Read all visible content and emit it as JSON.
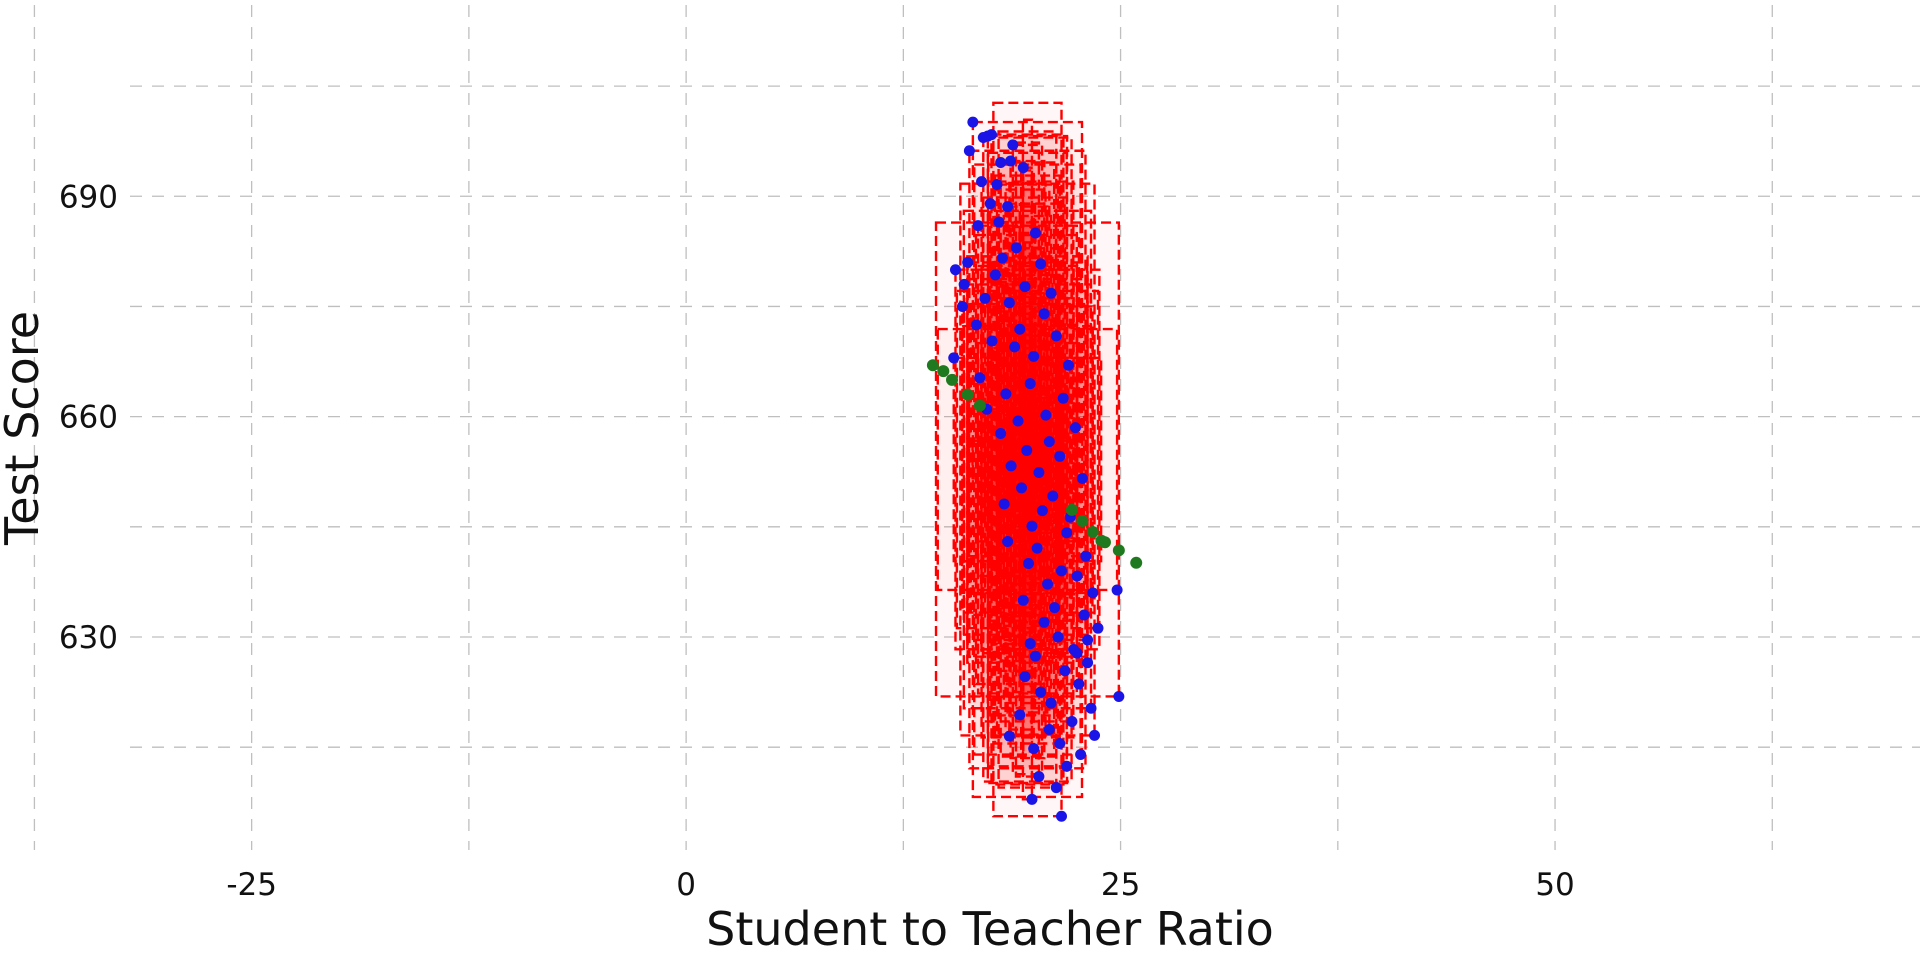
{
  "chart_data": {
    "type": "scatter",
    "title": "",
    "xlabel": "Student to Teacher Ratio",
    "ylabel": "Test Score",
    "xlim": [
      -32,
      71
    ],
    "ylim": [
      601,
      714
    ],
    "x_ticks": [
      -25,
      0,
      25,
      50
    ],
    "y_ticks": [
      630,
      660,
      690
    ],
    "grid": true,
    "legend": "none",
    "colors": {
      "points": "#1a14e6",
      "residual_points": "#1f7a1f",
      "rectangles_stroke": "#ff0000",
      "rectangles_fill": "#ff0000",
      "grid": "#bfbfbf"
    },
    "x_mean": 19.64,
    "y_mean": 654.16,
    "series": [
      {
        "values": [
          [
            17.89,
            691.6
          ],
          [
            17.36,
            698.2
          ],
          [
            18.67,
            694.8
          ],
          [
            17.57,
            698.4
          ],
          [
            18.1,
            694.6
          ],
          [
            16.5,
            700.1
          ],
          [
            17.1,
            698.0
          ],
          [
            18.8,
            697.0
          ],
          [
            16.3,
            696.2
          ],
          [
            19.4,
            693.9
          ],
          [
            17.0,
            692.0
          ],
          [
            18.5,
            688.6
          ],
          [
            17.5,
            689.0
          ],
          [
            18.0,
            686.5
          ],
          [
            16.8,
            686.0
          ],
          [
            20.1,
            685.0
          ],
          [
            19.0,
            683.0
          ],
          [
            16.2,
            681.0
          ],
          [
            18.2,
            681.6
          ],
          [
            15.5,
            680.0
          ],
          [
            17.8,
            679.3
          ],
          [
            20.4,
            680.8
          ],
          [
            16.0,
            678.0
          ],
          [
            19.5,
            677.7
          ],
          [
            17.2,
            676.1
          ],
          [
            21.0,
            676.8
          ],
          [
            18.6,
            675.5
          ],
          [
            15.9,
            675.0
          ],
          [
            20.6,
            674.0
          ],
          [
            16.7,
            672.5
          ],
          [
            19.2,
            671.9
          ],
          [
            21.3,
            671.0
          ],
          [
            17.6,
            670.3
          ],
          [
            18.9,
            669.5
          ],
          [
            15.4,
            668.0
          ],
          [
            20.0,
            668.2
          ],
          [
            22.0,
            667.0
          ],
          [
            16.9,
            665.3
          ],
          [
            19.8,
            664.5
          ],
          [
            18.4,
            663.1
          ],
          [
            21.7,
            662.5
          ],
          [
            17.3,
            661.0
          ],
          [
            20.7,
            660.2
          ],
          [
            19.1,
            659.4
          ],
          [
            22.4,
            658.5
          ],
          [
            18.1,
            657.7
          ],
          [
            20.9,
            656.6
          ],
          [
            19.6,
            655.4
          ],
          [
            21.5,
            654.6
          ],
          [
            18.7,
            653.3
          ],
          [
            20.3,
            652.4
          ],
          [
            22.8,
            651.6
          ],
          [
            19.3,
            650.3
          ],
          [
            21.1,
            649.2
          ],
          [
            18.3,
            648.1
          ],
          [
            20.5,
            647.2
          ],
          [
            22.1,
            646.3
          ],
          [
            19.9,
            645.1
          ],
          [
            21.9,
            644.2
          ],
          [
            18.5,
            643.0
          ],
          [
            20.2,
            642.1
          ],
          [
            23.0,
            641.0
          ],
          [
            19.7,
            640.0
          ],
          [
            21.6,
            639.0
          ],
          [
            22.5,
            638.3
          ],
          [
            20.8,
            637.2
          ],
          [
            23.4,
            636.0
          ],
          [
            19.4,
            635.0
          ],
          [
            21.2,
            634.0
          ],
          [
            22.9,
            633.0
          ],
          [
            20.6,
            632.0
          ],
          [
            23.7,
            631.2
          ],
          [
            21.4,
            630.0
          ],
          [
            19.8,
            629.1
          ],
          [
            22.3,
            628.3
          ],
          [
            20.1,
            627.4
          ],
          [
            23.1,
            626.5
          ],
          [
            21.8,
            625.4
          ],
          [
            19.5,
            624.6
          ],
          [
            22.6,
            623.6
          ],
          [
            20.4,
            622.5
          ],
          [
            24.9,
            621.9
          ],
          [
            21.0,
            621.0
          ],
          [
            23.3,
            620.3
          ],
          [
            19.2,
            619.4
          ],
          [
            22.2,
            618.5
          ],
          [
            20.9,
            617.4
          ],
          [
            23.5,
            616.6
          ],
          [
            21.5,
            615.5
          ],
          [
            20.0,
            614.8
          ],
          [
            22.7,
            614.0
          ],
          [
            21.9,
            612.4
          ],
          [
            20.3,
            611.0
          ],
          [
            21.3,
            609.5
          ],
          [
            19.9,
            607.9
          ],
          [
            21.6,
            605.6
          ],
          [
            24.8,
            636.4
          ],
          [
            23.1,
            629.6
          ],
          [
            22.5,
            627.8
          ],
          [
            18.6,
            616.5
          ]
        ]
      },
      {
        "values": [
          [
            14.2,
            667.0
          ],
          [
            14.8,
            666.2
          ],
          [
            15.3,
            665.0
          ],
          [
            16.2,
            663.0
          ],
          [
            16.9,
            661.5
          ],
          [
            22.2,
            647.3
          ],
          [
            22.8,
            645.8
          ],
          [
            23.4,
            644.3
          ],
          [
            24.1,
            642.9
          ],
          [
            24.9,
            641.8
          ],
          [
            25.9,
            640.1
          ],
          [
            23.9,
            643.1
          ]
        ]
      }
    ]
  }
}
